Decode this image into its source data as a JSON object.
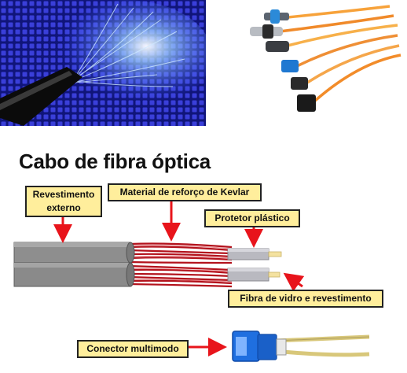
{
  "title": "Cabo de fibra óptica",
  "labels": {
    "outer_jacket_line1": "Revestimento",
    "outer_jacket_line2": "externo",
    "kevlar": "Material de reforço de Kevlar",
    "plastic": "Protetor plástico",
    "glass": "Fibra de vidro e revestimento",
    "connector": "Conector multimodo"
  },
  "colors": {
    "label_fill": "#ffee9c",
    "arrow": "#e8141b",
    "kevlar": "#b3121c",
    "jacket": "#8e8e8e",
    "photo_background": "#1a1ea8",
    "connector": "#1f6fe0"
  }
}
